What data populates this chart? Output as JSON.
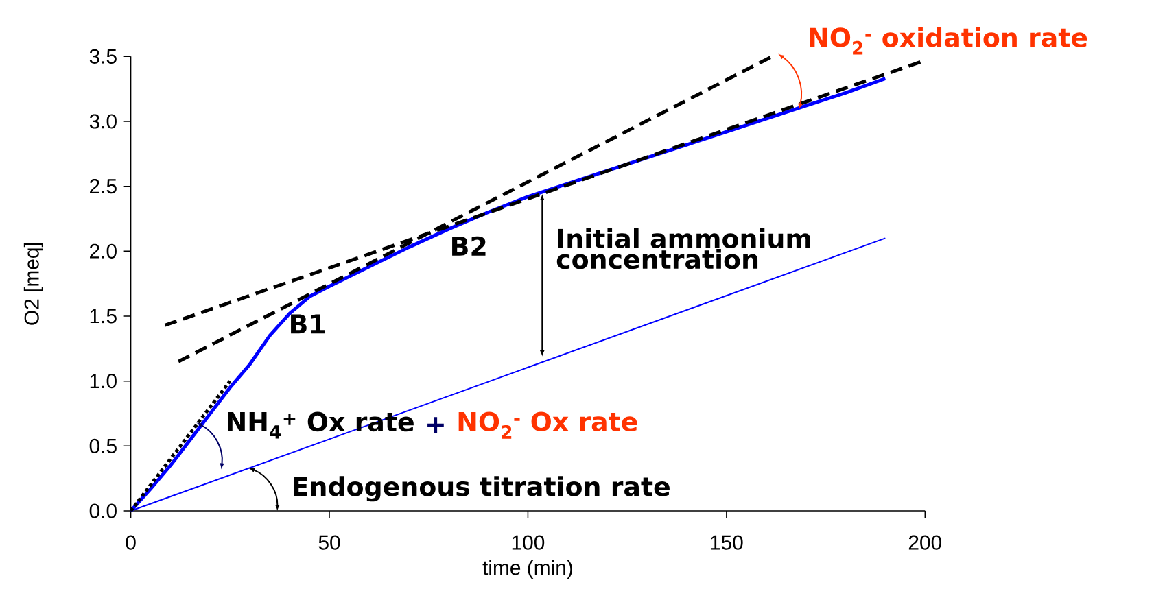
{
  "chart_data": {
    "type": "line",
    "xlabel": "time (min)",
    "ylabel": "O2 [meq]",
    "xlim": [
      0,
      200
    ],
    "ylim": [
      0,
      3.5
    ],
    "xticks": [
      0,
      50,
      100,
      150,
      200
    ],
    "yticks": [
      {
        "value": 0,
        "label": "0.0"
      },
      0.5,
      {
        "value": 1,
        "label": "1.0"
      },
      1.5,
      {
        "value": 2,
        "label": "2.0"
      },
      2.5,
      {
        "value": 3,
        "label": "3.0"
      },
      3.5
    ],
    "grid": false,
    "series": [
      {
        "color": "#0000ff",
        "x": [
          0,
          5,
          10,
          15,
          20,
          25,
          30,
          35,
          40,
          45,
          50,
          60,
          70,
          80,
          90,
          100,
          110,
          120,
          130,
          140,
          150,
          160,
          170,
          180,
          190
        ],
        "values": [
          0,
          0.17,
          0.35,
          0.55,
          0.75,
          0.95,
          1.13,
          1.35,
          1.52,
          1.65,
          1.73,
          1.88,
          2.03,
          2.17,
          2.3,
          2.42,
          2.52,
          2.62,
          2.72,
          2.82,
          2.92,
          3.02,
          3.12,
          3.22,
          3.33
        ]
      },
      {
        "color": "#0000ff",
        "x": [
          0,
          190
        ],
        "values": [
          0,
          2.1
        ]
      },
      {
        "color": "#000000",
        "x": [
          0,
          25
        ],
        "values": [
          0,
          1.0
        ],
        "line_style": "dotted"
      },
      {
        "color": "#000000",
        "x": [
          8.6,
          200
        ],
        "values": [
          1.43,
          3.47
        ],
        "line_style": "dashed"
      },
      {
        "color": "#000000",
        "x": [
          12,
          161.5
        ],
        "values": [
          1.15,
          3.5
        ],
        "line_style": "dashed"
      }
    ],
    "annotations": [
      {
        "text": "NO$_{2}$$^{-}$ oxidation rate",
        "x": 168.2,
        "y": 3.09
      },
      {
        "text": "Initial ammonium concentration",
        "x": 103.6,
        "y": 2.44
      },
      "B2",
      "B1",
      {
        "text": "NH$_{4}$$^{+}$ Ox rate",
        "x": 16.5,
        "y": 0.68
      },
      "+",
      "NO$_{2}$$^{-}$ Ox rate",
      {
        "text": "Endogenous titration rate",
        "x": 29.7,
        "y": 0.33
      }
    ]
  }
}
